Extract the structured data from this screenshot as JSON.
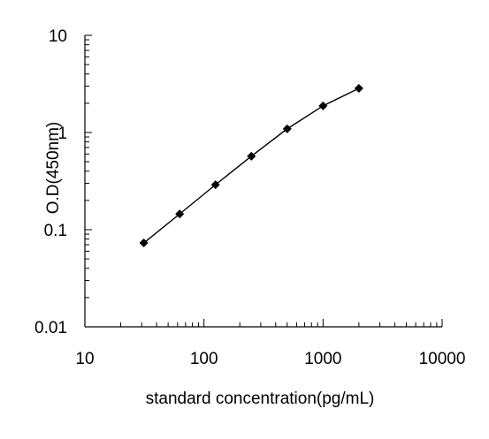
{
  "chart_data": {
    "type": "line",
    "title": "",
    "xlabel": "standard concentration(pg/mL)",
    "ylabel": "O.D(450nm)",
    "x_scale": "log",
    "y_scale": "log",
    "xlim": [
      10,
      10000
    ],
    "ylim": [
      0.01,
      10
    ],
    "x_tick_labels": [
      "10",
      "100",
      "1000",
      "10000"
    ],
    "y_tick_labels": [
      "0.01",
      "0.1",
      "1",
      "10"
    ],
    "grid": false,
    "legend": "none",
    "series": [
      {
        "x": [
          31.25,
          62.5,
          125,
          250,
          500,
          1000,
          2000
        ],
        "y": [
          0.073,
          0.145,
          0.29,
          0.57,
          1.09,
          1.88,
          2.85
        ],
        "color": "#000000",
        "marker": "diamond"
      }
    ]
  }
}
